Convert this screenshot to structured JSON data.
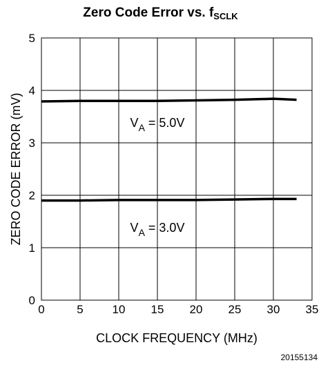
{
  "chart_data": {
    "type": "line",
    "title": "Zero Code Error vs. f",
    "title_subscript": "SCLK",
    "xlabel": "CLOCK FREQUENCY (MHz)",
    "ylabel": "ZERO CODE ERROR (mV)",
    "xlim": [
      0,
      35
    ],
    "ylim": [
      0,
      5
    ],
    "x_ticks": [
      "0",
      "5",
      "10",
      "15",
      "20",
      "25",
      "30",
      "35"
    ],
    "y_ticks": [
      "0",
      "1",
      "2",
      "3",
      "4",
      "5"
    ],
    "grid": true,
    "series": [
      {
        "label_main": "V",
        "label_sub": "A",
        "label_rest": " = 5.0V",
        "x": [
          0,
          5,
          10,
          15,
          20,
          25,
          30,
          33
        ],
        "y": [
          3.79,
          3.8,
          3.8,
          3.8,
          3.81,
          3.82,
          3.84,
          3.82
        ]
      },
      {
        "label_main": "V",
        "label_sub": "A",
        "label_rest": " = 3.0V",
        "x": [
          0,
          5,
          10,
          15,
          20,
          25,
          30,
          33
        ],
        "y": [
          1.9,
          1.9,
          1.91,
          1.91,
          1.91,
          1.92,
          1.93,
          1.93
        ]
      }
    ],
    "figure_id": "20155134"
  }
}
